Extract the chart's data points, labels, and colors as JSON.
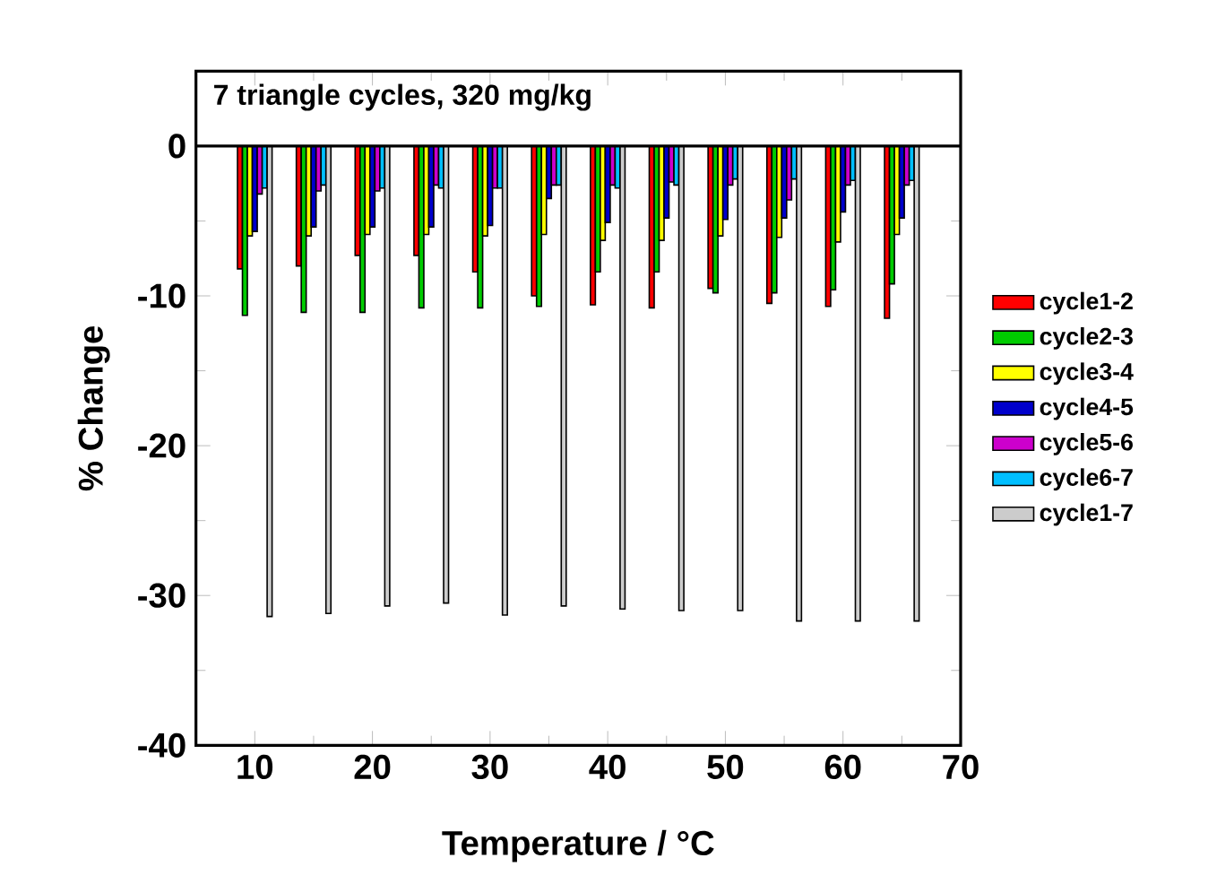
{
  "chart_data": {
    "type": "bar",
    "annotations": [
      "7 triangle cycles, 320 mg/kg"
    ],
    "xlabel": "Temperature / °C",
    "ylabel": "% Change",
    "x": [
      10,
      15,
      20,
      25,
      30,
      35,
      40,
      45,
      50,
      55,
      60,
      65
    ],
    "series": [
      {
        "name": "cycle1-2",
        "color": "#ff0000",
        "values": [
          -8.2,
          -8.0,
          -7.3,
          -7.3,
          -8.4,
          -10.0,
          -10.6,
          -10.8,
          -9.5,
          -10.5,
          -10.7,
          -11.5
        ]
      },
      {
        "name": "cycle2-3",
        "color": "#00cc00",
        "values": [
          -11.3,
          -11.1,
          -11.1,
          -10.8,
          -10.8,
          -10.7,
          -8.4,
          -8.4,
          -9.8,
          -9.8,
          -9.6,
          -9.2
        ]
      },
      {
        "name": "cycle3-4",
        "color": "#ffff00",
        "values": [
          -6.0,
          -6.0,
          -5.9,
          -5.9,
          -6.0,
          -5.9,
          -6.3,
          -6.3,
          -6.0,
          -6.1,
          -6.4,
          -5.9
        ]
      },
      {
        "name": "cycle4-5",
        "color": "#0000cc",
        "values": [
          -5.7,
          -5.4,
          -5.4,
          -5.4,
          -5.3,
          -3.5,
          -5.1,
          -4.8,
          -4.9,
          -4.8,
          -4.4,
          -4.8
        ]
      },
      {
        "name": "cycle5-6",
        "color": "#cc00cc",
        "values": [
          -3.2,
          -3.0,
          -3.0,
          -2.6,
          -2.8,
          -2.6,
          -2.6,
          -2.4,
          -2.6,
          -3.6,
          -2.6,
          -2.6
        ]
      },
      {
        "name": "cycle6-7",
        "color": "#00bfff",
        "values": [
          -2.8,
          -2.6,
          -2.8,
          -2.8,
          -2.8,
          -2.6,
          -2.8,
          -2.6,
          -2.2,
          -2.2,
          -2.3,
          -2.3
        ]
      },
      {
        "name": "cycle1-7",
        "color": "#cccccc",
        "values": [
          -31.4,
          -31.2,
          -30.7,
          -30.5,
          -31.3,
          -30.7,
          -30.9,
          -31.0,
          -31.0,
          -31.7,
          -31.7,
          -31.7
        ]
      }
    ],
    "xlim": [
      5,
      70
    ],
    "xticks": [
      10,
      20,
      30,
      40,
      50,
      60,
      70
    ],
    "ylim": [
      -40,
      5
    ],
    "yticks": [
      0,
      -10,
      -20,
      -30,
      -40
    ],
    "legend": "right"
  }
}
